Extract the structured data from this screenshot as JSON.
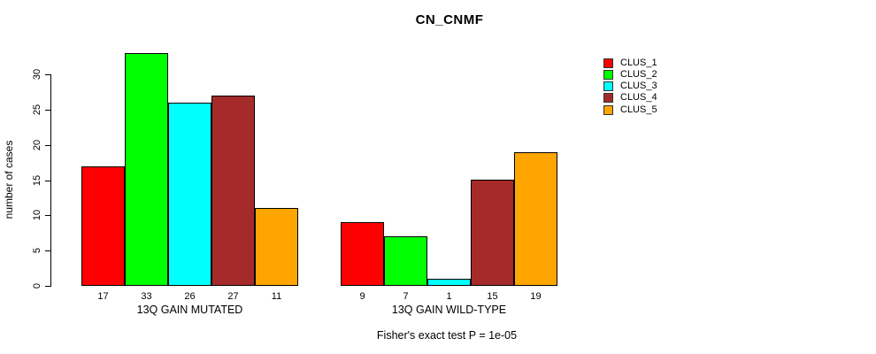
{
  "chart_data": {
    "type": "bar",
    "title": "CN_CNMF",
    "ylabel": "number of cases",
    "xlabel": "",
    "categories": [
      "13Q GAIN MUTATED",
      "13Q GAIN WILD-TYPE"
    ],
    "series": [
      {
        "name": "CLUS_1",
        "color": "#FF0000",
        "values": [
          17,
          9
        ]
      },
      {
        "name": "CLUS_2",
        "color": "#00FF00",
        "values": [
          33,
          7
        ]
      },
      {
        "name": "CLUS_3",
        "color": "#00FFFF",
        "values": [
          26,
          1
        ]
      },
      {
        "name": "CLUS_4",
        "color": "#A52A2A",
        "values": [
          27,
          15
        ]
      },
      {
        "name": "CLUS_5",
        "color": "#FFA500",
        "values": [
          11,
          19
        ]
      }
    ],
    "bar_value_labels": [
      [
        "17",
        "33",
        "26",
        "27",
        "11"
      ],
      [
        "9",
        "7",
        "1",
        "15",
        "19"
      ]
    ],
    "yticks": [
      0,
      5,
      10,
      15,
      20,
      25,
      30
    ],
    "ylim": [
      0,
      33
    ],
    "grid": false,
    "legend_position": "top-right",
    "annotation": "Fisher's exact test P = 1e-05"
  }
}
